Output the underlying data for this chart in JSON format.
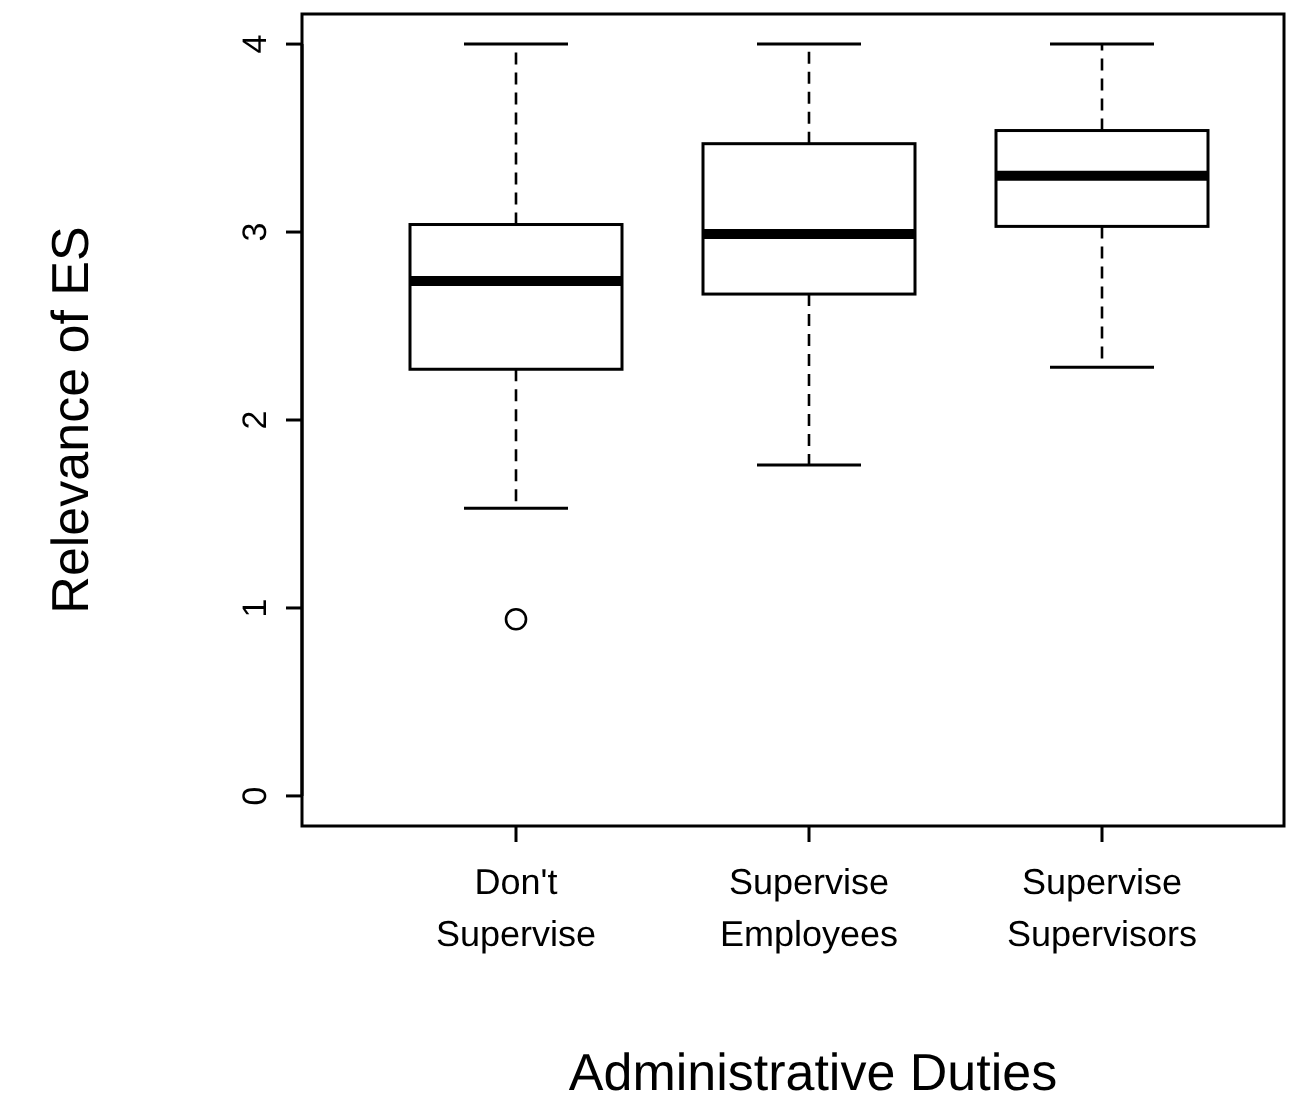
{
  "chart_data": {
    "type": "box",
    "xlabel": "Administrative Duties",
    "ylabel": "Relevance of ES",
    "categories": [
      "Don't Supervise",
      "Supervise Employees",
      "Supervise Supervisors"
    ],
    "boxes": [
      {
        "low": 1.53,
        "q1": 2.27,
        "median": 2.74,
        "q3": 3.04,
        "high": 4,
        "outliers": [
          0.94
        ]
      },
      {
        "low": 1.76,
        "q1": 2.67,
        "median": 2.99,
        "q3": 3.47,
        "high": 4
      },
      {
        "low": 2.28,
        "q1": 3.03,
        "median": 3.3,
        "q3": 3.54,
        "high": 4
      }
    ],
    "ylim": [
      -0.16,
      4.16
    ],
    "yticks": [
      0,
      1,
      2,
      3,
      4
    ],
    "grid": false
  }
}
